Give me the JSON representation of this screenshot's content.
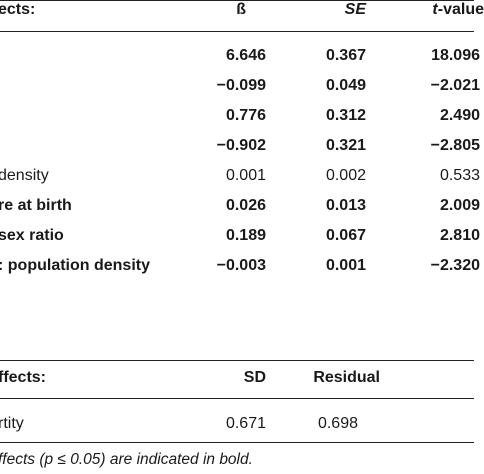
{
  "fixed_effects": {
    "header": {
      "label": "ects:",
      "col_beta": "ß",
      "col_se": "SE",
      "col_t": "t-value"
    },
    "rows": [
      {
        "label": "",
        "beta": "6.646",
        "se": "0.367",
        "t": "18.096",
        "bold": true
      },
      {
        "label": "",
        "beta": "−0.099",
        "se": "0.049",
        "t": "−2.021",
        "bold": true
      },
      {
        "label": "",
        "beta": "0.776",
        "se": "0.312",
        "t": "2.490",
        "bold": true
      },
      {
        "label": "",
        "beta": "−0.902",
        "se": "0.321",
        "t": "−2.805",
        "bold": true
      },
      {
        "label": "density",
        "beta": "0.001",
        "se": "0.002",
        "t": "0.533",
        "bold": false
      },
      {
        "label": "re at birth",
        "beta": "0.026",
        "se": "0.013",
        "t": "2.009",
        "bold": true
      },
      {
        "label": "sex ratio",
        "beta": "0.189",
        "se": "0.067",
        "t": "2.810",
        "bold": true
      },
      {
        "label": ": population density",
        "beta": "−0.003",
        "se": "0.001",
        "t": "−2.320",
        "bold": true
      }
    ]
  },
  "random_effects": {
    "header": {
      "label": "ffects:",
      "col_sd": "SD",
      "col_residual": "Residual"
    },
    "rows": [
      {
        "label": "rtity",
        "sd": "0.671",
        "residual": "0.698"
      }
    ]
  },
  "footnote": "ffects (p ≤ 0.05) are indicated in bold."
}
